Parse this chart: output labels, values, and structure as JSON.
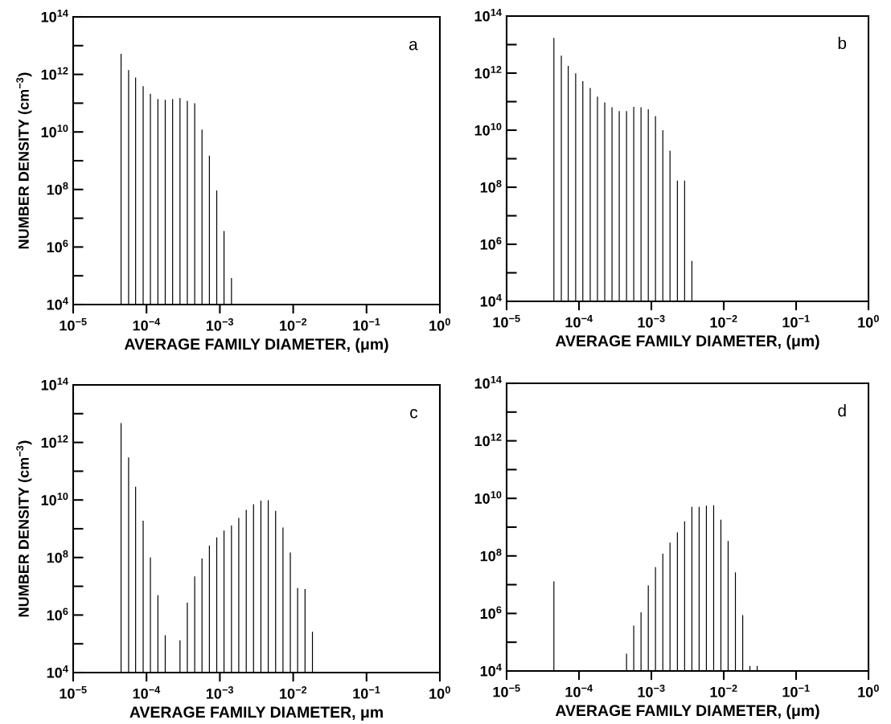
{
  "chart_data": [
    {
      "type": "bar",
      "xlabel": "AVERAGE FAMILY DIAMETER, (μm)",
      "ylabel": "NUMBER DENSITY (cm$^{−3}$)",
      "annotations": [
        "a"
      ],
      "log": "xy",
      "grid": false,
      "tick_labels": true,
      "xlim": [
        1e-05,
        1
      ],
      "ylim": [
        10000.0,
        100000000000000.0
      ],
      "xticks": [
        {
          "value": 1e-05,
          "label": "10$^{−5}$"
        },
        {
          "value": 0.0001,
          "label": "10$^{−4}$"
        },
        {
          "value": 0.001,
          "label": "10$^{−3}$"
        },
        {
          "value": 0.01,
          "label": "10$^{−2}$"
        },
        {
          "value": 0.1,
          "label": "10$^{−1}$"
        },
        {
          "value": 1,
          "label": "10$^{0}$"
        }
      ],
      "yticks": [
        {
          "value": 10000.0,
          "label": "10$^{4}$"
        },
        {
          "value": 100000.0,
          "label": null
        },
        {
          "value": 1000000.0,
          "label": "10$^{6}$"
        },
        {
          "value": 10000000.0,
          "label": null
        },
        {
          "value": 100000000.0,
          "label": "10$^{8}$"
        },
        {
          "value": 1000000000.0,
          "label": null
        },
        {
          "value": 10000000000.0,
          "label": "10$^{10}$"
        },
        {
          "value": 100000000000.0,
          "label": null
        },
        {
          "value": 1000000000000.0,
          "label": "10$^{12}$"
        },
        {
          "value": 10000000000000.0,
          "label": null
        },
        {
          "value": 100000000000000.0,
          "label": "10$^{14}$"
        }
      ],
      "series": [
        {
          "color": "#000000",
          "x": [
            4.5e-05,
            5.7e-05,
            7.1e-05,
            9e-05,
            0.000113,
            0.000143,
            0.00018,
            0.000227,
            0.000286,
            0.00036,
            0.000454,
            0.000571,
            0.00072,
            0.000907,
            0.00114,
            0.00144
          ],
          "values": [
            5200000000000.0,
            1400000000000.0,
            780000000000.0,
            390000000000.0,
            210000000000.0,
            140000000000.0,
            130000000000.0,
            140000000000.0,
            150000000000.0,
            120000000000.0,
            100000000000.0,
            12000000000.0,
            1500000000.0,
            93000000.0,
            3600000.0,
            83000.0
          ]
        }
      ]
    },
    {
      "type": "bar",
      "xlabel": "AVERAGE FAMILY DIAMETER, (μm)",
      "annotations": [
        "b"
      ],
      "log": "xy",
      "grid": false,
      "xlim": [
        1e-05,
        1
      ],
      "ylim": [
        10000.0,
        100000000000000.0
      ],
      "xticks": [
        {
          "value": 1e-05,
          "label": "10$^{−5}$"
        },
        {
          "value": 0.0001,
          "label": "10$^{−4}$"
        },
        {
          "value": 0.001,
          "label": "10$^{−3}$"
        },
        {
          "value": 0.01,
          "label": "10$^{−2}$"
        },
        {
          "value": 0.1,
          "label": "10$^{−1}$"
        },
        {
          "value": 1,
          "label": "10$^{0}$"
        }
      ],
      "yticks": [
        {
          "value": 10000.0,
          "label": "10$^{4}$"
        },
        {
          "value": 100000.0,
          "label": null
        },
        {
          "value": 1000000.0,
          "label": "10$^{6}$"
        },
        {
          "value": 10000000.0,
          "label": null
        },
        {
          "value": 100000000.0,
          "label": "10$^{8}$"
        },
        {
          "value": 1000000000.0,
          "label": null
        },
        {
          "value": 10000000000.0,
          "label": "10$^{10}$"
        },
        {
          "value": 100000000000.0,
          "label": null
        },
        {
          "value": 1000000000000.0,
          "label": "10$^{12}$"
        },
        {
          "value": 10000000000000.0,
          "label": null
        },
        {
          "value": 100000000000000.0,
          "label": "10$^{14}$"
        }
      ],
      "series": [
        {
          "color": "#000000",
          "x": [
            4.5e-05,
            5.7e-05,
            7.1e-05,
            9e-05,
            0.000113,
            0.000143,
            0.00018,
            0.000227,
            0.000286,
            0.00036,
            0.000454,
            0.000571,
            0.00072,
            0.000907,
            0.00114,
            0.00144,
            0.00181,
            0.00229,
            0.00288,
            0.00363
          ],
          "values": [
            17000000000000.0,
            4100000000000.0,
            1800000000000.0,
            980000000000.0,
            520000000000.0,
            300000000000.0,
            150000000000.0,
            93000000000.0,
            63000000000.0,
            47000000000.0,
            47000000000.0,
            66000000000.0,
            63000000000.0,
            54000000000.0,
            31000000000.0,
            10000000000.0,
            1900000000.0,
            170000000.0,
            170000000.0,
            260000.0
          ]
        }
      ]
    },
    {
      "type": "bar",
      "xlabel": "AVERAGE FAMILY DIAMETER, μm",
      "ylabel": "NUMBER DENSITY (cm$^{−3}$)",
      "annotations": [
        "c"
      ],
      "log": "xy",
      "grid": false,
      "xlim": [
        1e-05,
        1
      ],
      "ylim": [
        10000.0,
        100000000000000.0
      ],
      "xticks": [
        {
          "value": 1e-05,
          "label": "10$^{−5}$"
        },
        {
          "value": 0.0001,
          "label": "10$^{−4}$"
        },
        {
          "value": 0.001,
          "label": "10$^{−3}$"
        },
        {
          "value": 0.01,
          "label": "10$^{−2}$"
        },
        {
          "value": 0.1,
          "label": "10$^{−1}$"
        },
        {
          "value": 1,
          "label": "10$^{0}$"
        }
      ],
      "yticks": [
        {
          "value": 10000.0,
          "label": "10$^{4}$"
        },
        {
          "value": 100000.0,
          "label": null
        },
        {
          "value": 1000000.0,
          "label": "10$^{6}$"
        },
        {
          "value": 10000000.0,
          "label": null
        },
        {
          "value": 100000000.0,
          "label": "10$^{8}$"
        },
        {
          "value": 1000000000.0,
          "label": null
        },
        {
          "value": 10000000000.0,
          "label": "10$^{10}$"
        },
        {
          "value": 100000000000.0,
          "label": null
        },
        {
          "value": 1000000000000.0,
          "label": "10$^{12}$"
        },
        {
          "value": 10000000000000.0,
          "label": null
        },
        {
          "value": 100000000000000.0,
          "label": "10$^{14}$"
        }
      ],
      "series": [
        {
          "color": "#000000",
          "x": [
            4.5e-05,
            5.7e-05,
            7.1e-05,
            9e-05,
            0.000113,
            0.000143,
            0.00018,
            0.000286,
            0.00036,
            0.000454,
            0.000571,
            0.00072,
            0.000907,
            0.00114,
            0.00144,
            0.00181,
            0.00229,
            0.00288,
            0.00363,
            0.00457,
            0.00576,
            0.00726,
            0.00914,
            0.0115,
            0.0145,
            0.0183
          ],
          "values": [
            4700000000000.0,
            300000000000.0,
            29000000000.0,
            1900000000.0,
            100000000.0,
            4900000.0,
            200000.0,
            130000.0,
            2700000.0,
            22000000.0,
            93000000.0,
            260000000.0,
            500000000.0,
            870000000.0,
            1300000000.0,
            2400000000.0,
            4500000000.0,
            7100000000.0,
            9500000000.0,
            9800000000.0,
            4200000000.0,
            1100000000.0,
            150000000.0,
            8700000.0,
            8100000.0,
            260000.0
          ]
        }
      ]
    },
    {
      "type": "bar",
      "xlabel": "AVERAGE FAMILY DIAMETER, (μm)",
      "annotations": [
        "d"
      ],
      "log": "xy",
      "grid": false,
      "xlim": [
        1e-05,
        1
      ],
      "ylim": [
        10000.0,
        100000000000000.0
      ],
      "xticks": [
        {
          "value": 1e-05,
          "label": "10$^{−5}$"
        },
        {
          "value": 0.0001,
          "label": "10$^{−4}$"
        },
        {
          "value": 0.001,
          "label": "10$^{−3}$"
        },
        {
          "value": 0.01,
          "label": "10$^{−2}$"
        },
        {
          "value": 0.1,
          "label": "10$^{−1}$"
        },
        {
          "value": 1,
          "label": "10$^{0}$"
        }
      ],
      "yticks": [
        {
          "value": 10000.0,
          "label": "10$^{4}$"
        },
        {
          "value": 100000.0,
          "label": null
        },
        {
          "value": 1000000.0,
          "label": "10$^{6}$"
        },
        {
          "value": 10000000.0,
          "label": null
        },
        {
          "value": 100000000.0,
          "label": "10$^{8}$"
        },
        {
          "value": 1000000000.0,
          "label": null
        },
        {
          "value": 10000000000.0,
          "label": "10$^{10}$"
        },
        {
          "value": 100000000000.0,
          "label": null
        },
        {
          "value": 1000000000000.0,
          "label": "10$^{12}$"
        },
        {
          "value": 10000000000000.0,
          "label": null
        },
        {
          "value": 100000000000000.0,
          "label": "10$^{14}$"
        }
      ],
      "series": [
        {
          "color": "#000000",
          "x": [
            4.5e-05,
            0.000454,
            0.000571,
            0.00072,
            0.000907,
            0.00114,
            0.00144,
            0.00181,
            0.00229,
            0.00288,
            0.00363,
            0.00457,
            0.00576,
            0.00726,
            0.00914,
            0.0115,
            0.0145,
            0.0183,
            0.023,
            0.029
          ],
          "values": [
            13000000.0,
            40000.0,
            380000.0,
            1100000.0,
            9500000.0,
            41000000.0,
            120000000.0,
            290000000.0,
            660000000.0,
            1600000000.0,
            5100000000.0,
            5100000000.0,
            5600000000.0,
            5800000000.0,
            1800000000.0,
            330000000.0,
            27000000.0,
            870000.0,
            15000.0,
            15000.0
          ]
        }
      ]
    }
  ]
}
